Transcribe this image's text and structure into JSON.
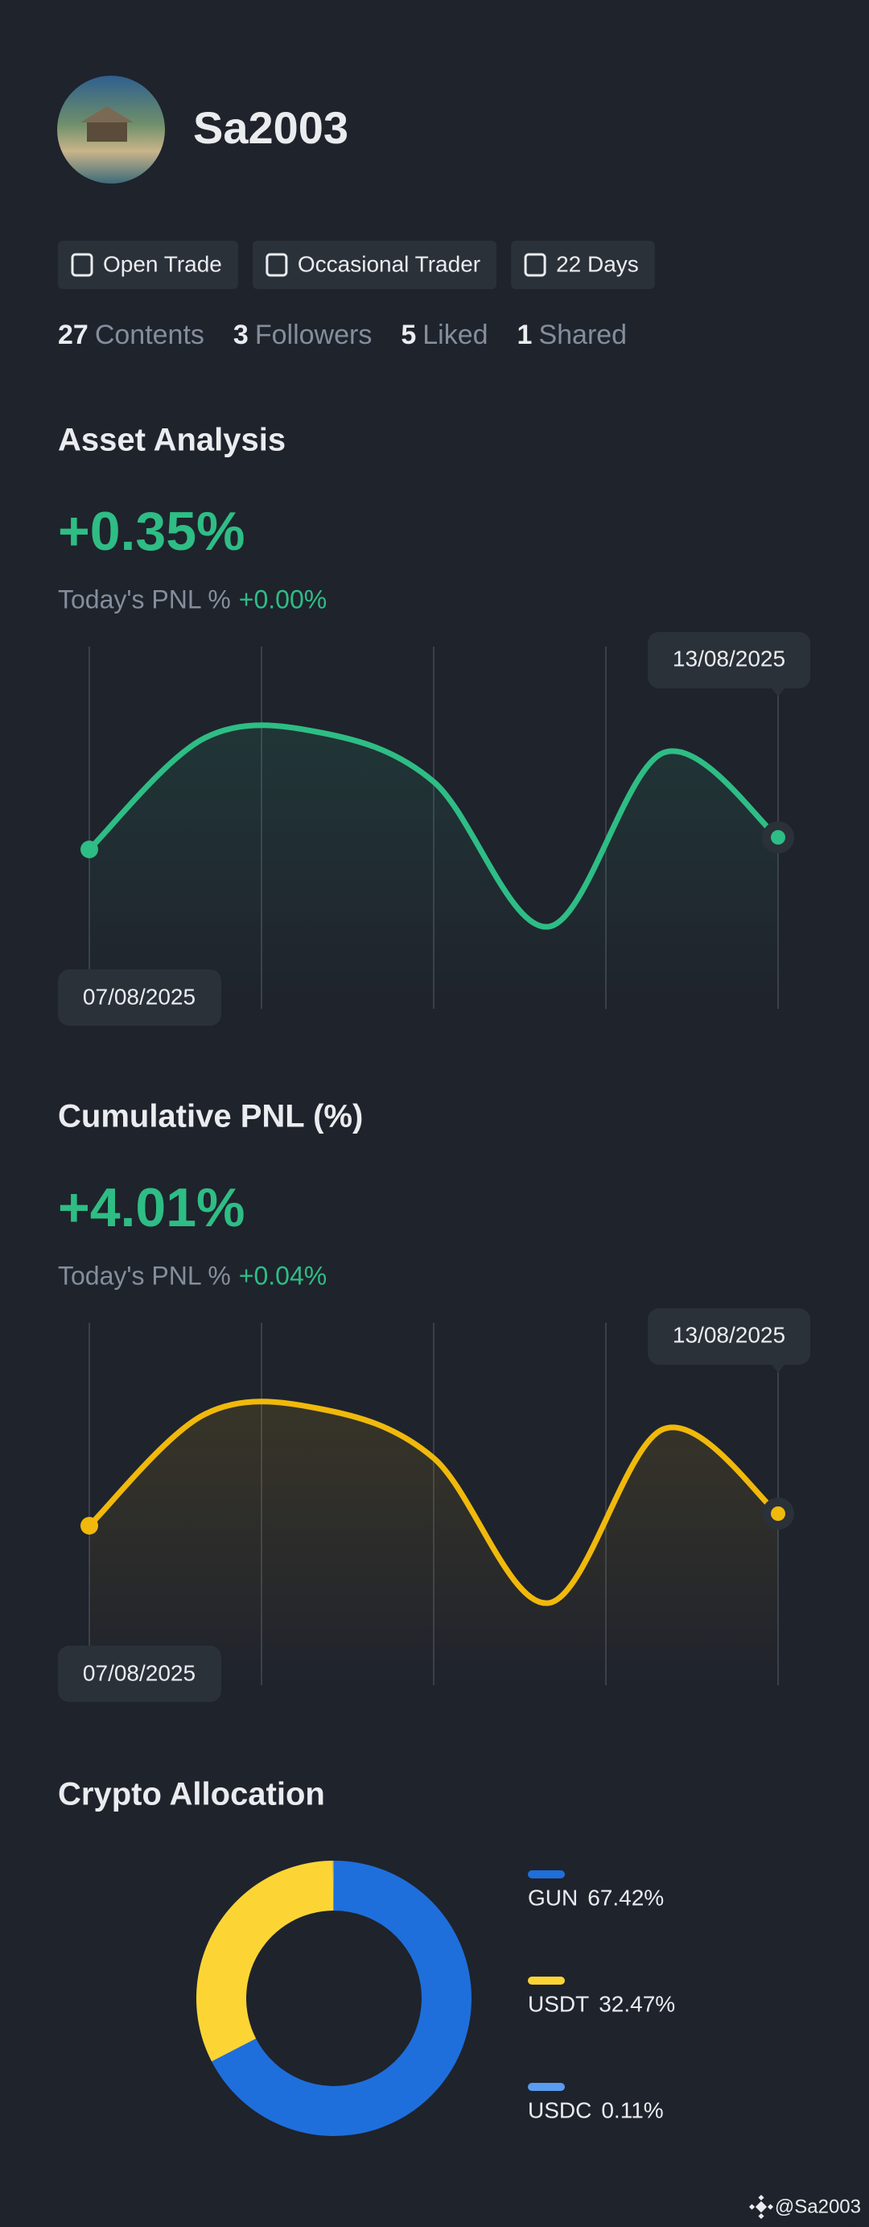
{
  "profile": {
    "username": "Sa2003",
    "badges": [
      "Open Trade",
      "Occasional Trader",
      "22 Days"
    ],
    "stats": [
      {
        "count": 27,
        "label": "Contents"
      },
      {
        "count": 3,
        "label": "Followers"
      },
      {
        "count": 5,
        "label": "Liked"
      },
      {
        "count": 1,
        "label": "Shared"
      }
    ]
  },
  "chart_data": [
    {
      "type": "line",
      "title": "Asset Analysis",
      "headline_value": "+0.35%",
      "today_label": "Today's PNL %",
      "today_value": "+0.00%",
      "categories": [
        "07/08/2025",
        null,
        null,
        null,
        null,
        null,
        "13/08/2025"
      ],
      "values": [
        -0.18,
        0.74,
        0.79,
        0.38,
        -0.82,
        0.62,
        -0.08
      ],
      "color": "#2ebd85",
      "ylim": [
        -1.5,
        1.5
      ]
    },
    {
      "type": "line",
      "title": "Cumulative PNL (%)",
      "headline_value": "+4.01%",
      "today_label": "Today's PNL %",
      "today_value": "+0.04%",
      "categories": [
        "07/08/2025",
        null,
        null,
        null,
        null,
        null,
        "13/08/2025"
      ],
      "values": [
        -0.18,
        0.74,
        0.79,
        0.38,
        -0.82,
        0.62,
        -0.08
      ],
      "color": "#f0b90b",
      "ylim": [
        -1.5,
        1.5
      ]
    },
    {
      "type": "pie",
      "title": "Crypto Allocation",
      "categories": [
        "GUN",
        "USDT",
        "USDC"
      ],
      "values": [
        67.42,
        32.47,
        0.11
      ],
      "value_labels": [
        "67.42%",
        "32.47%",
        "0.11%"
      ],
      "colors": [
        "#1e6fdb",
        "#fcd535",
        "#5a9cf0"
      ],
      "donut": true
    }
  ],
  "footer": "@Sa2003"
}
